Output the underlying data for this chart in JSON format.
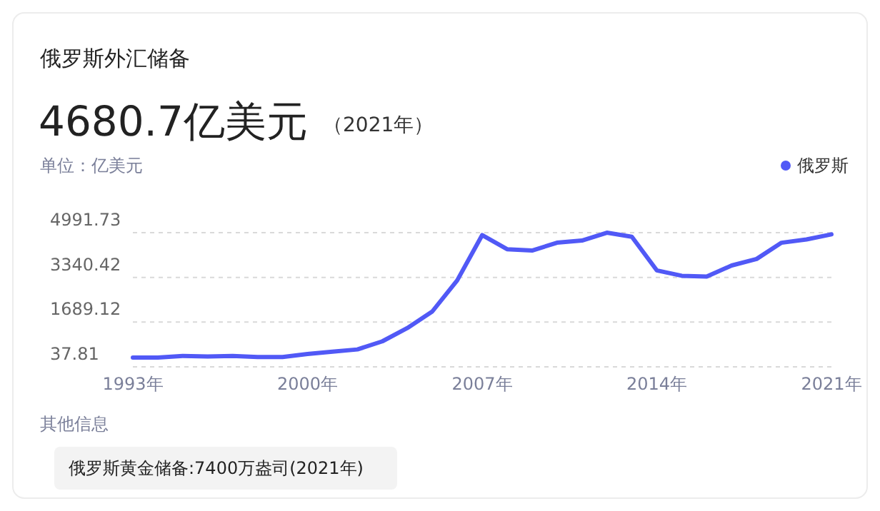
{
  "chart_data": {
    "type": "line",
    "title": "俄罗斯外汇储备",
    "subtitle": "4680.7亿美元",
    "ylabel": "单位：亿美元",
    "annotations": [
      "（2021年）",
      "其他信息",
      "俄罗斯黄金储备:7400万盎司(2021年)"
    ],
    "x": [
      1993,
      1994,
      1995,
      1996,
      1997,
      1998,
      1999,
      2000,
      2001,
      2002,
      2003,
      2004,
      2005,
      2006,
      2007,
      2008,
      2009,
      2010,
      2011,
      2012,
      2013,
      2014,
      2015,
      2016,
      2017,
      2018,
      2019,
      2020,
      2021
    ],
    "series": [
      {
        "name": "俄罗斯",
        "color": "#5159f6",
        "values": [
          380,
          380,
          440,
          420,
          440,
          400,
          400,
          510,
          600,
          680,
          980,
          1470,
          2080,
          3230,
          4900,
          4380,
          4330,
          4620,
          4700,
          4990,
          4840,
          3600,
          3400,
          3370,
          3780,
          4020,
          4620,
          4740,
          4930
        ]
      }
    ],
    "xlim": [
      1993,
      2021
    ],
    "xticks": [
      {
        "value": 1993,
        "label": "1993年"
      },
      {
        "value": 2000,
        "label": "2000年"
      },
      {
        "value": 2007,
        "label": "2007年"
      },
      {
        "value": 2014,
        "label": "2014年"
      },
      {
        "value": 2021,
        "label": "2021年"
      }
    ],
    "ylim": [
      37.81,
      4991.73
    ],
    "yticks": [
      37.81,
      1689.12,
      3340.42,
      4991.73
    ],
    "grid": "y",
    "legend": "top right",
    "marker": "none",
    "line_style": "solid"
  }
}
